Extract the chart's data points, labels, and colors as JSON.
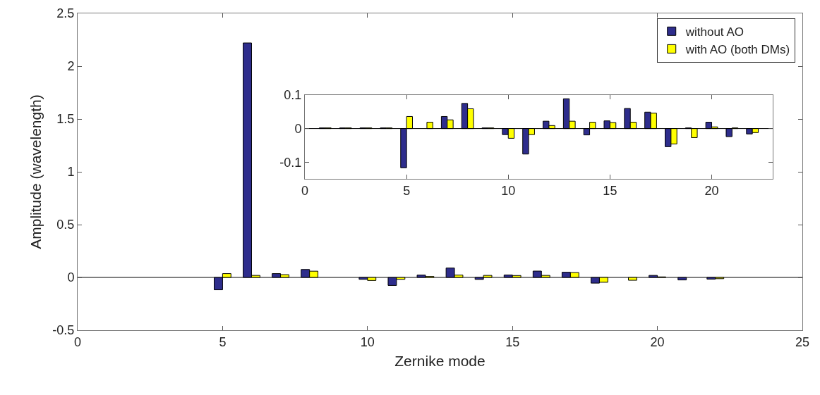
{
  "chart_data": [
    {
      "type": "bar",
      "xlabel": "Zernike mode",
      "ylabel": "Amplitude (wavelength)",
      "series": [
        {
          "name": "without AO",
          "color": "#2e2d8c",
          "x": [
            5,
            6,
            7,
            8,
            10,
            11,
            12,
            13,
            14,
            15,
            16,
            17,
            18,
            20,
            21,
            22
          ],
          "values": [
            -0.117,
            2.22,
            0.036,
            0.075,
            -0.018,
            -0.076,
            0.022,
            0.089,
            -0.019,
            0.023,
            0.06,
            0.049,
            -0.054,
            0.019,
            -0.024,
            -0.016
          ]
        },
        {
          "name": "with AO (both DMs)",
          "color": "#ffff00",
          "x": [
            5,
            6,
            7,
            8,
            10,
            11,
            12,
            13,
            14,
            15,
            16,
            17,
            18,
            19,
            20,
            22
          ],
          "values": [
            0.036,
            0.019,
            0.026,
            0.059,
            -0.029,
            -0.018,
            0.009,
            0.022,
            0.019,
            0.018,
            0.019,
            0.046,
            -0.046,
            -0.027,
            0.005,
            -0.012
          ]
        }
      ],
      "xlim": [
        0,
        25
      ],
      "xticks": [
        0,
        5,
        10,
        15,
        20,
        25
      ],
      "ylim": [
        -0.5,
        2.5
      ],
      "yticks": [
        -0.5,
        0,
        0.5,
        1,
        1.5,
        2,
        2.5
      ],
      "ref_lines": [
        {
          "axis": "y",
          "value": 0
        }
      ],
      "legend": "top right"
    },
    {
      "type": "bar",
      "x": [
        1,
        2,
        3,
        4,
        5,
        6,
        7,
        8,
        9,
        10,
        11,
        12,
        13,
        14,
        15,
        16,
        17,
        18,
        19,
        20,
        21,
        22
      ],
      "series": [
        {
          "color": "#2e2d8c",
          "values": [
            0.002,
            0.002,
            0.002,
            0.002,
            -0.117,
            null,
            0.036,
            0.075,
            0.002,
            -0.018,
            -0.076,
            0.022,
            0.089,
            -0.019,
            0.023,
            0.06,
            0.049,
            -0.054,
            0.002,
            0.019,
            -0.024,
            -0.016
          ]
        },
        {
          "color": "#ffff00",
          "values": [
            0.002,
            0.002,
            0.002,
            0.002,
            0.036,
            0.019,
            0.026,
            0.059,
            0.002,
            -0.029,
            -0.018,
            0.009,
            0.022,
            0.019,
            0.018,
            0.019,
            0.046,
            -0.046,
            -0.027,
            0.005,
            0.002,
            -0.012
          ]
        }
      ],
      "xlim": [
        0,
        23
      ],
      "xticks": [
        0,
        5,
        10,
        15,
        20
      ],
      "ylim": [
        -0.15,
        0.1
      ],
      "yticks": [
        -0.1,
        0,
        0.1
      ],
      "ref_lines": [
        {
          "axis": "y",
          "value": 0
        }
      ],
      "legend": false
    }
  ]
}
